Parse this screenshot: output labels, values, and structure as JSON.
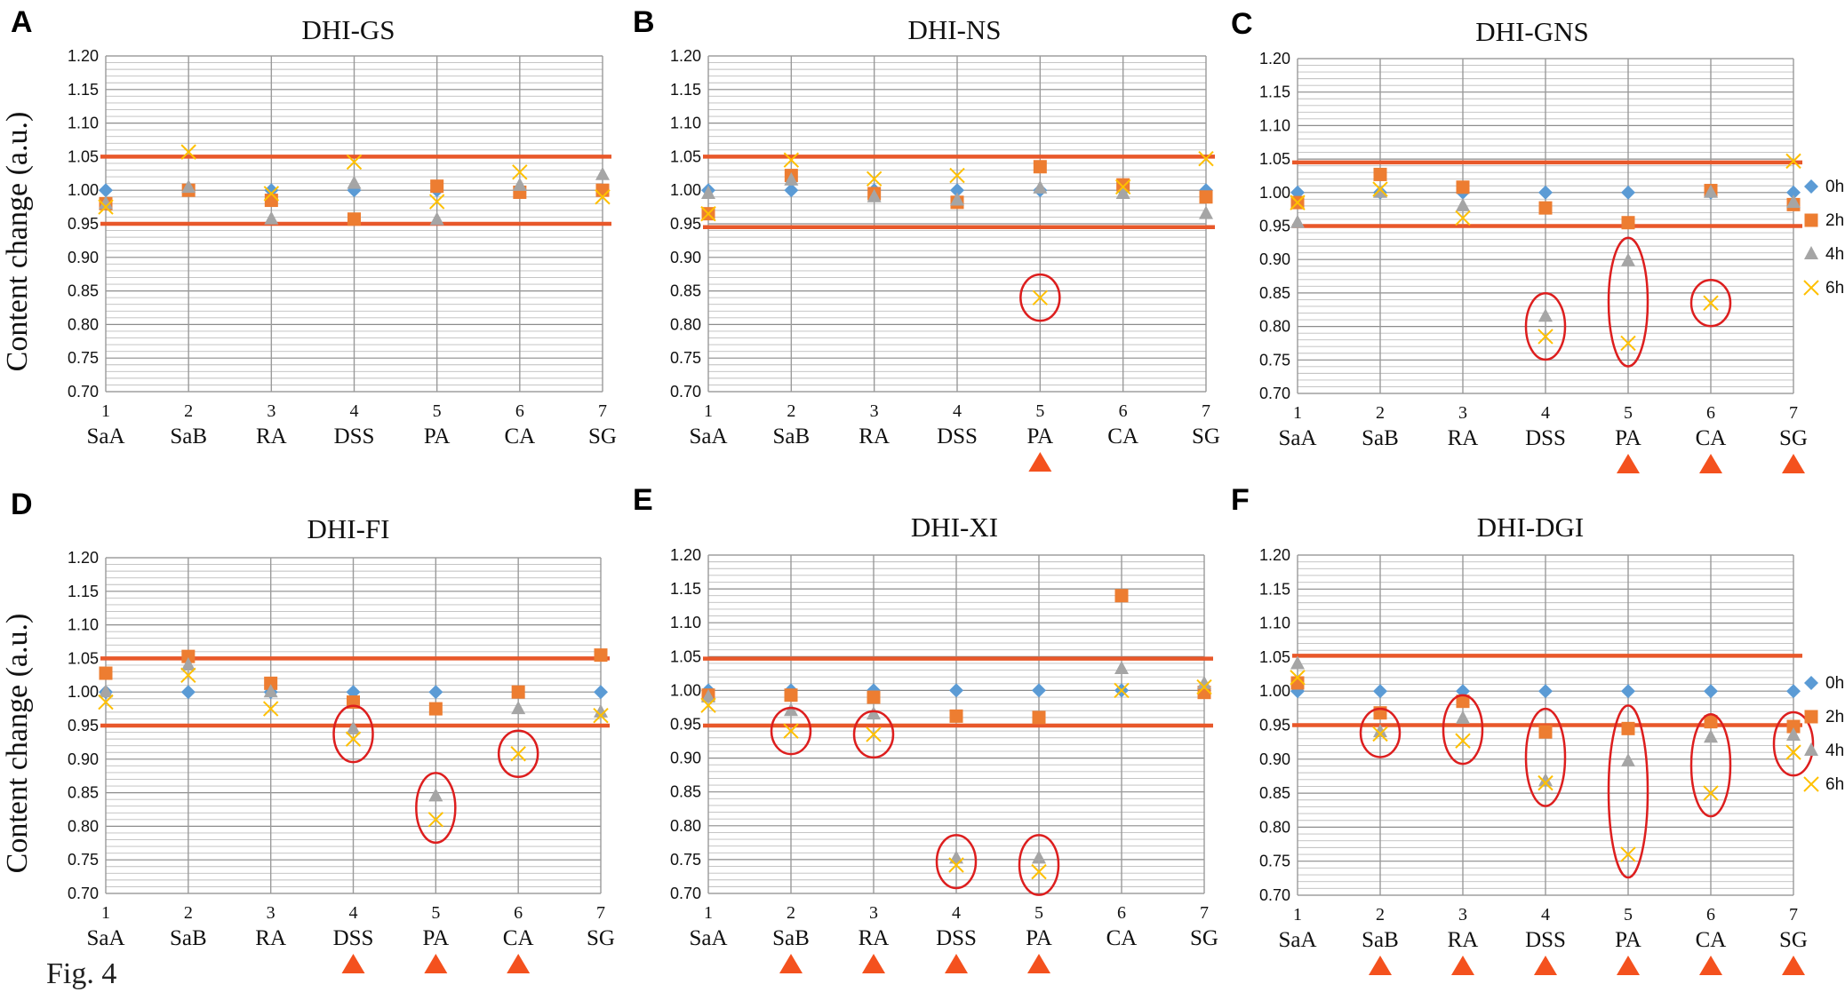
{
  "figure_label": "Fig. 4",
  "y_axis_label": "Content change (a.u.)",
  "series_style": [
    {
      "name": "0h",
      "marker": "diamond",
      "color": "#5b9bd5"
    },
    {
      "name": "2h",
      "marker": "square",
      "color": "#ed7d31"
    },
    {
      "name": "4h",
      "marker": "triangle",
      "color": "#a5a5a5"
    },
    {
      "name": "6h",
      "marker": "x",
      "color": "#ffc000"
    }
  ],
  "threshold_color": "#e8582a",
  "ellipse_color": "#dd1e1e",
  "arrow_color": "#f4511e",
  "chart_data": [
    {
      "panel": "A",
      "type": "scatter",
      "title": "DHI-GS",
      "ylabel": "Content change (a.u.)",
      "x_numbers": [
        "1",
        "2",
        "3",
        "4",
        "5",
        "6",
        "7"
      ],
      "categories": [
        "SaA",
        "SaB",
        "RA",
        "DSS",
        "PA",
        "CA",
        "SG"
      ],
      "ylim": [
        0.7,
        1.2
      ],
      "yticks": [
        "0.70",
        "0.75",
        "0.80",
        "0.85",
        "0.90",
        "0.95",
        "1.00",
        "1.05",
        "1.10",
        "1.15",
        "1.20"
      ],
      "thresholds": [
        1.05,
        0.95
      ],
      "series": [
        {
          "name": "0h",
          "values": [
            1.0,
            1.0,
            1.0,
            1.0,
            1.0,
            1.0,
            1.0
          ]
        },
        {
          "name": "2h",
          "values": [
            0.98,
            1.0,
            0.985,
            0.957,
            1.006,
            0.997,
            1.0
          ]
        },
        {
          "name": "4h",
          "values": [
            0.98,
            1.004,
            0.957,
            1.01,
            0.956,
            1.007,
            1.023
          ]
        },
        {
          "name": "6h",
          "values": [
            0.975,
            1.057,
            0.995,
            1.042,
            0.983,
            1.027,
            0.99
          ]
        }
      ],
      "highlight": [],
      "marked_categories": [],
      "legend": false
    },
    {
      "panel": "B",
      "type": "scatter",
      "title": "DHI-NS",
      "ylabel": "",
      "x_numbers": [
        "1",
        "2",
        "3",
        "4",
        "5",
        "6",
        "7"
      ],
      "categories": [
        "SaA",
        "SaB",
        "RA",
        "DSS",
        "PA",
        "CA",
        "SG"
      ],
      "ylim": [
        0.7,
        1.2
      ],
      "yticks": [
        "0.70",
        "0.75",
        "0.80",
        "0.85",
        "0.90",
        "0.95",
        "1.00",
        "1.05",
        "1.10",
        "1.15",
        "1.20"
      ],
      "thresholds": [
        1.05,
        0.945
      ],
      "series": [
        {
          "name": "0h",
          "values": [
            1.0,
            1.0,
            1.0,
            1.0,
            1.0,
            1.0,
            1.0
          ]
        },
        {
          "name": "2h",
          "values": [
            0.965,
            1.022,
            0.995,
            0.982,
            1.035,
            1.008,
            0.99
          ]
        },
        {
          "name": "4h",
          "values": [
            0.995,
            1.015,
            0.99,
            0.985,
            1.003,
            0.995,
            0.965
          ]
        },
        {
          "name": "6h",
          "values": [
            0.965,
            1.045,
            1.017,
            1.022,
            0.84,
            1.005,
            1.047
          ]
        }
      ],
      "highlight": [
        {
          "x": 5,
          "ymin": 0.84,
          "ymax": 0.84
        }
      ],
      "marked_categories": [
        5
      ],
      "legend": false
    },
    {
      "panel": "C",
      "type": "scatter",
      "title": "DHI-GNS",
      "ylabel": "",
      "x_numbers": [
        "1",
        "2",
        "3",
        "4",
        "5",
        "6",
        "7"
      ],
      "categories": [
        "SaA",
        "SaB",
        "RA",
        "DSS",
        "PA",
        "CA",
        "SG"
      ],
      "ylim": [
        0.7,
        1.2
      ],
      "yticks": [
        "0.70",
        "0.75",
        "0.80",
        "0.85",
        "0.90",
        "0.95",
        "1.00",
        "1.05",
        "1.10",
        "1.15",
        "1.20"
      ],
      "thresholds": [
        1.045,
        0.95
      ],
      "series": [
        {
          "name": "0h",
          "values": [
            1.0,
            1.0,
            1.0,
            1.0,
            1.0,
            1.0,
            1.0
          ]
        },
        {
          "name": "2h",
          "values": [
            0.985,
            1.027,
            1.008,
            0.977,
            0.955,
            1.003,
            0.982
          ]
        },
        {
          "name": "4h",
          "values": [
            0.955,
            1.0,
            0.98,
            0.815,
            0.898,
            1.0,
            0.985
          ]
        },
        {
          "name": "6h",
          "values": [
            0.985,
            1.005,
            0.962,
            0.785,
            0.775,
            0.835,
            1.047
          ]
        }
      ],
      "highlight": [
        {
          "x": 4,
          "ymin": 0.785,
          "ymax": 0.815
        },
        {
          "x": 5,
          "ymin": 0.775,
          "ymax": 0.898
        },
        {
          "x": 6,
          "ymin": 0.835,
          "ymax": 0.835
        }
      ],
      "marked_categories": [
        5,
        6,
        7
      ],
      "legend": true
    },
    {
      "panel": "D",
      "type": "scatter",
      "title": "DHI-FI",
      "ylabel": "Content change (a.u.)",
      "x_numbers": [
        "1",
        "2",
        "3",
        "4",
        "5",
        "6",
        "7"
      ],
      "categories": [
        "SaA",
        "SaB",
        "RA",
        "DSS",
        "PA",
        "CA",
        "SG"
      ],
      "ylim": [
        0.7,
        1.2
      ],
      "yticks": [
        "0.70",
        "0.75",
        "0.80",
        "0.85",
        "0.90",
        "0.95",
        "1.00",
        "1.05",
        "1.10",
        "1.15",
        "1.20"
      ],
      "thresholds": [
        1.05,
        0.95
      ],
      "series": [
        {
          "name": "0h",
          "values": [
            1.0,
            1.0,
            1.0,
            1.0,
            1.0,
            1.0,
            1.0
          ]
        },
        {
          "name": "2h",
          "values": [
            1.028,
            1.053,
            1.013,
            0.985,
            0.975,
            1.0,
            1.055
          ]
        },
        {
          "name": "4h",
          "values": [
            1.0,
            1.04,
            1.0,
            0.945,
            0.845,
            0.975,
            0.97
          ]
        },
        {
          "name": "6h",
          "values": [
            0.985,
            1.025,
            0.975,
            0.93,
            0.81,
            0.908,
            0.965
          ]
        }
      ],
      "highlight": [
        {
          "x": 4,
          "ymin": 0.93,
          "ymax": 0.945
        },
        {
          "x": 5,
          "ymin": 0.81,
          "ymax": 0.845
        },
        {
          "x": 6,
          "ymin": 0.908,
          "ymax": 0.908
        }
      ],
      "marked_categories": [
        4,
        5,
        6
      ],
      "legend": false
    },
    {
      "panel": "E",
      "type": "scatter",
      "title": "DHI-XI",
      "ylabel": "",
      "x_numbers": [
        "1",
        "2",
        "3",
        "4",
        "5",
        "6",
        "7"
      ],
      "categories": [
        "SaA",
        "SaB",
        "RA",
        "DSS",
        "PA",
        "CA",
        "SG"
      ],
      "ylim": [
        0.7,
        1.2
      ],
      "yticks": [
        "0.70",
        "0.75",
        "0.80",
        "0.85",
        "0.90",
        "0.95",
        "1.00",
        "1.05",
        "1.10",
        "1.15",
        "1.20"
      ],
      "thresholds": [
        1.047,
        0.948
      ],
      "series": [
        {
          "name": "0h",
          "values": [
            1.0,
            1.0,
            1.0,
            1.0,
            1.0,
            1.0,
            1.0
          ]
        },
        {
          "name": "2h",
          "values": [
            0.993,
            0.993,
            0.99,
            0.962,
            0.96,
            1.14,
            0.997
          ]
        },
        {
          "name": "4h",
          "values": [
            0.99,
            0.97,
            0.965,
            0.752,
            0.752,
            1.032,
            1.01
          ]
        },
        {
          "name": "6h",
          "values": [
            0.978,
            0.94,
            0.935,
            0.742,
            0.732,
            1.0,
            1.005
          ]
        }
      ],
      "highlight": [
        {
          "x": 2,
          "ymin": 0.94,
          "ymax": 0.94
        },
        {
          "x": 3,
          "ymin": 0.935,
          "ymax": 0.935
        },
        {
          "x": 4,
          "ymin": 0.742,
          "ymax": 0.752
        },
        {
          "x": 5,
          "ymin": 0.732,
          "ymax": 0.752
        }
      ],
      "marked_categories": [
        2,
        3,
        4,
        5
      ],
      "legend": false
    },
    {
      "panel": "F",
      "type": "scatter",
      "title": "DHI-DGI",
      "ylabel": "",
      "x_numbers": [
        "1",
        "2",
        "3",
        "4",
        "5",
        "6",
        "7"
      ],
      "categories": [
        "SaA",
        "SaB",
        "RA",
        "DSS",
        "PA",
        "CA",
        "SG"
      ],
      "ylim": [
        0.7,
        1.2
      ],
      "yticks": [
        "0.70",
        "0.75",
        "0.80",
        "0.85",
        "0.90",
        "0.95",
        "1.00",
        "1.05",
        "1.10",
        "1.15",
        "1.20"
      ],
      "thresholds": [
        1.052,
        0.95
      ],
      "series": [
        {
          "name": "0h",
          "values": [
            1.0,
            1.0,
            1.0,
            1.0,
            1.0,
            1.0,
            1.0
          ]
        },
        {
          "name": "2h",
          "values": [
            1.012,
            0.968,
            0.985,
            0.94,
            0.945,
            0.955,
            0.948
          ]
        },
        {
          "name": "4h",
          "values": [
            1.04,
            0.94,
            0.96,
            0.868,
            0.897,
            0.932,
            0.935
          ]
        },
        {
          "name": "6h",
          "values": [
            1.02,
            0.937,
            0.927,
            0.865,
            0.76,
            0.85,
            0.91
          ]
        }
      ],
      "highlight": [
        {
          "x": 2,
          "ymin": 0.937,
          "ymax": 0.94
        },
        {
          "x": 3,
          "ymin": 0.927,
          "ymax": 0.96
        },
        {
          "x": 4,
          "ymin": 0.865,
          "ymax": 0.94
        },
        {
          "x": 5,
          "ymin": 0.76,
          "ymax": 0.945
        },
        {
          "x": 6,
          "ymin": 0.85,
          "ymax": 0.932
        },
        {
          "x": 7,
          "ymin": 0.91,
          "ymax": 0.935
        }
      ],
      "marked_categories": [
        2,
        3,
        4,
        5,
        6,
        7
      ],
      "legend": true
    }
  ]
}
